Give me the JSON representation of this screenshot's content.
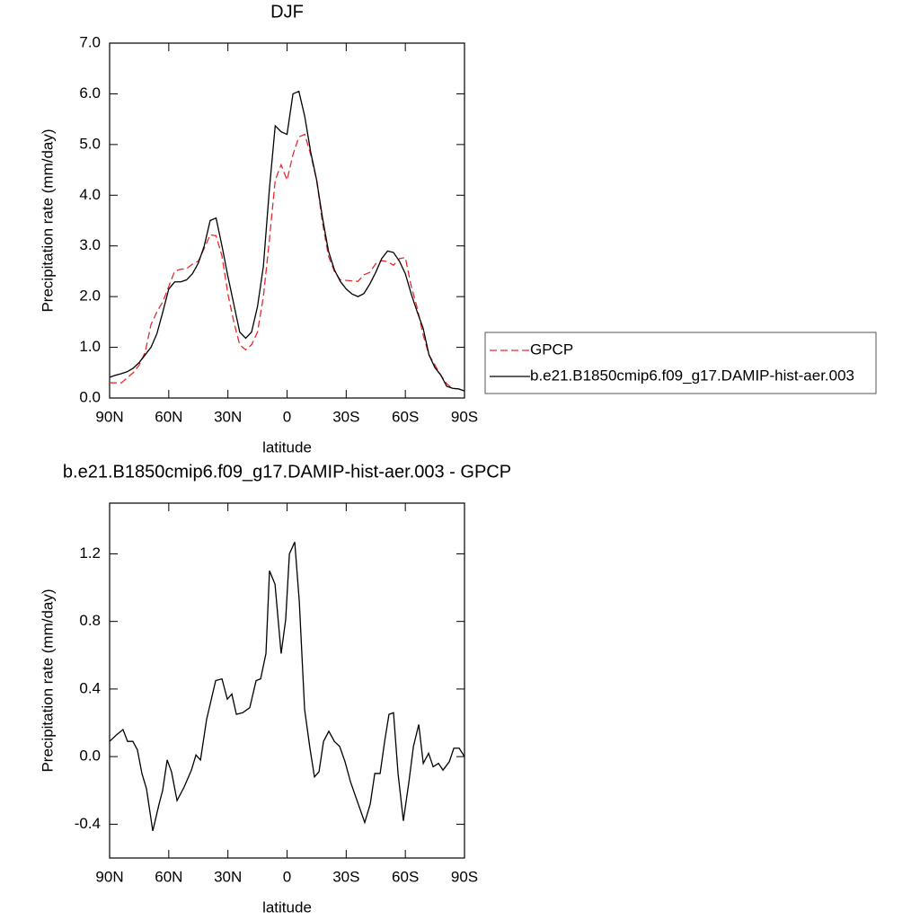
{
  "chart_data": [
    {
      "type": "line",
      "title": "DJF",
      "x_label": "latitude",
      "y_label": "Precipitation rate (mm/day)",
      "x": [
        90,
        87,
        84,
        81,
        78,
        75,
        72,
        69,
        66,
        63,
        60,
        57,
        54,
        51,
        48,
        45,
        42,
        39,
        36,
        33,
        30,
        27,
        24,
        21,
        18,
        15,
        12,
        9,
        6,
        3,
        0,
        -3,
        -6,
        -9,
        -12,
        -15,
        -18,
        -21,
        -24,
        -27,
        -30,
        -33,
        -36,
        -39,
        -42,
        -45,
        -48,
        -51,
        -54,
        -57,
        -60,
        -63,
        -66,
        -69,
        -72,
        -75,
        -78,
        -81,
        -84,
        -87,
        -90
      ],
      "series": [
        {
          "name": "GPCP",
          "color": "#e8292b",
          "line_style": "dashed",
          "values": [
            0.3,
            0.3,
            0.3,
            0.4,
            0.5,
            0.65,
            0.9,
            1.45,
            1.7,
            1.9,
            2.2,
            2.5,
            2.54,
            2.55,
            2.64,
            2.7,
            2.95,
            3.22,
            3.2,
            2.8,
            2.05,
            1.5,
            1.05,
            0.95,
            1.05,
            1.3,
            2.0,
            3.1,
            4.3,
            4.6,
            4.3,
            4.8,
            5.15,
            5.2,
            4.8,
            4.3,
            3.45,
            2.8,
            2.5,
            2.33,
            2.32,
            2.31,
            2.3,
            2.43,
            2.48,
            2.65,
            2.71,
            2.69,
            2.62,
            2.75,
            2.77,
            2.2,
            1.78,
            1.25,
            0.85,
            0.65,
            0.45,
            0.28,
            0.19,
            0.18,
            0.14
          ]
        },
        {
          "name": "b.e21.B1850cmip6.f09_g17.DAMIP-hist-aer.003",
          "color": "#000000",
          "line_style": "solid",
          "values": [
            0.41,
            0.45,
            0.48,
            0.52,
            0.59,
            0.7,
            0.85,
            1.0,
            1.27,
            1.7,
            2.15,
            2.29,
            2.29,
            2.33,
            2.45,
            2.66,
            3.0,
            3.5,
            3.55,
            3.0,
            2.4,
            1.85,
            1.3,
            1.18,
            1.3,
            1.8,
            2.6,
            4.1,
            5.37,
            5.25,
            5.2,
            6.0,
            6.05,
            5.55,
            4.85,
            4.3,
            3.55,
            2.9,
            2.53,
            2.3,
            2.15,
            2.05,
            2.0,
            2.06,
            2.25,
            2.48,
            2.75,
            2.9,
            2.87,
            2.7,
            2.45,
            2.05,
            1.7,
            1.38,
            0.85,
            0.6,
            0.45,
            0.23,
            0.19,
            0.18,
            0.14
          ]
        }
      ],
      "xlim": [
        90,
        -90
      ],
      "xticks": [
        {
          "value": 90,
          "label": "90N"
        },
        {
          "value": 60,
          "label": "60N"
        },
        {
          "value": 30,
          "label": "30N"
        },
        0,
        {
          "value": -30,
          "label": "30S"
        },
        {
          "value": -60,
          "label": "60S"
        },
        {
          "value": -90,
          "label": "90S"
        }
      ],
      "ylim": [
        0,
        7
      ],
      "yticks": [
        {
          "value": 0,
          "label": "0.0"
        },
        {
          "value": 1,
          "label": "1.0"
        },
        {
          "value": 2,
          "label": "2.0"
        },
        {
          "value": 3,
          "label": "3.0"
        },
        {
          "value": 4,
          "label": "4.0"
        },
        {
          "value": 5,
          "label": "5.0"
        },
        {
          "value": 6,
          "label": "6.0"
        },
        {
          "value": 7,
          "label": "7.0"
        }
      ],
      "legend": "right"
    },
    {
      "type": "line",
      "title": "b.e21.B1850cmip6.f09_g17.DAMIP-hist-aer.003 - GPCP",
      "x_label": "latitude",
      "y_label": "Precipitation rate (mm/day)",
      "x": [
        90,
        86.4,
        83.2,
        80.9,
        78.2,
        75.9,
        73.6,
        71.3,
        68.1,
        64.9,
        63.1,
        60.8,
        58.6,
        55.8,
        52.2,
        48.5,
        46.2,
        43.9,
        40.8,
        36.2,
        33,
        30.3,
        28,
        25.7,
        22.5,
        18.9,
        15.7,
        13.4,
        10.7,
        8.9,
        6.1,
        3,
        0.7,
        -1.2,
        -3.9,
        -6.2,
        -8.9,
        -11.6,
        -13.9,
        -16.2,
        -18.5,
        -21.2,
        -24,
        -26.7,
        -29.4,
        -32.2,
        -35.8,
        -39.4,
        -42.2,
        -44.5,
        -47.2,
        -49.5,
        -51.7,
        -54,
        -56.3,
        -59,
        -61.8,
        -64.1,
        -66.8,
        -69.1,
        -71.8,
        -74.1,
        -76.8,
        -79.1,
        -82.3,
        -84.6,
        -87.3,
        -90
      ],
      "series": [
        {
          "color": "#000000",
          "line_style": "solid",
          "values": [
            0.09,
            0.13,
            0.16,
            0.09,
            0.09,
            0.04,
            -0.1,
            -0.19,
            -0.44,
            -0.28,
            -0.2,
            -0.02,
            -0.09,
            -0.26,
            -0.18,
            -0.08,
            0.01,
            -0.02,
            0.22,
            0.45,
            0.46,
            0.34,
            0.37,
            0.25,
            0.26,
            0.29,
            0.45,
            0.46,
            0.61,
            1.1,
            1.02,
            0.61,
            0.81,
            1.2,
            1.27,
            0.92,
            0.28,
            0.05,
            -0.12,
            -0.09,
            0.09,
            0.15,
            0.09,
            0.06,
            -0.03,
            -0.15,
            -0.27,
            -0.39,
            -0.28,
            -0.1,
            -0.1,
            0.09,
            0.25,
            0.26,
            -0.1,
            -0.38,
            -0.15,
            0.06,
            0.19,
            -0.04,
            0.02,
            -0.06,
            -0.04,
            -0.08,
            -0.03,
            0.05,
            0.05,
            0
          ]
        }
      ],
      "xlim": [
        90,
        -90
      ],
      "xticks": [
        {
          "value": 90,
          "label": "90N"
        },
        {
          "value": 60,
          "label": "60N"
        },
        {
          "value": 30,
          "label": "30N"
        },
        0,
        {
          "value": -30,
          "label": "30S"
        },
        {
          "value": -60,
          "label": "60S"
        },
        {
          "value": -90,
          "label": "90S"
        }
      ],
      "ylim": [
        -0.6,
        1.5
      ],
      "yticks": [
        -0.4,
        {
          "value": 0,
          "label": "0.0"
        },
        0.4,
        0.8,
        1.2
      ]
    }
  ]
}
